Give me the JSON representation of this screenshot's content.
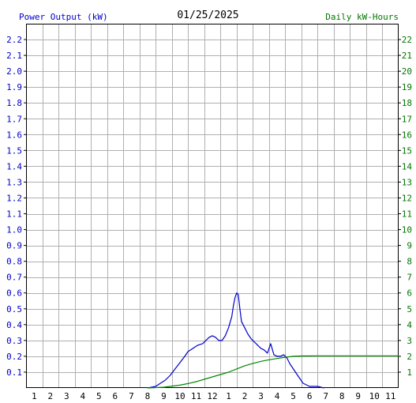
{
  "header": {
    "left_label": "Power Output (kW)",
    "date": "01/25/2025",
    "right_label": "Daily kW-Hours"
  },
  "colors": {
    "power_series": "#0000cc",
    "energy_series": "#008800",
    "left_axis_text": "#0000cc",
    "right_axis_text": "#007700",
    "grid": "#b0b0b0"
  },
  "chart_data": {
    "type": "line",
    "x_categories": [
      "1",
      "2",
      "3",
      "4",
      "5",
      "6",
      "7",
      "8",
      "9",
      "10",
      "11",
      "12",
      "1",
      "2",
      "3",
      "4",
      "5",
      "6",
      "7",
      "8",
      "9",
      "10",
      "11"
    ],
    "xlim": [
      0,
      23
    ],
    "y_left": {
      "label": "Power Output (kW)",
      "ylim": [
        0,
        2.3
      ],
      "ticks": [
        "0.1",
        "0.2",
        "0.3",
        "0.4",
        "0.5",
        "0.6",
        "0.7",
        "0.8",
        "0.9",
        "1.0",
        "1.1",
        "1.2",
        "1.3",
        "1.4",
        "1.5",
        "1.6",
        "1.7",
        "1.8",
        "1.9",
        "2.0",
        "2.1",
        "2.2"
      ]
    },
    "y_right": {
      "label": "Daily kW-Hours",
      "ylim": [
        0,
        23
      ],
      "ticks": [
        "1",
        "2",
        "3",
        "4",
        "5",
        "6",
        "7",
        "8",
        "9",
        "10",
        "11",
        "12",
        "13",
        "14",
        "15",
        "16",
        "17",
        "18",
        "19",
        "20",
        "21",
        "22"
      ]
    },
    "grid": true,
    "series": [
      {
        "axis": "left",
        "x": [
          7.5,
          8.0,
          8.3,
          8.6,
          8.9,
          9.2,
          9.5,
          9.8,
          10.0,
          10.3,
          10.6,
          10.9,
          11.1,
          11.3,
          11.5,
          11.7,
          11.9,
          12.1,
          12.3,
          12.5,
          12.7,
          12.8,
          12.9,
          13.0,
          13.1,
          13.2,
          13.3,
          13.5,
          13.7,
          13.9,
          14.1,
          14.3,
          14.5,
          14.7,
          14.9,
          15.1,
          15.3,
          15.5,
          15.7,
          15.9,
          16.1,
          16.3,
          16.5,
          16.7,
          16.9,
          17.1,
          17.3,
          17.5,
          17.8,
          18.0,
          18.4
        ],
        "y": [
          0.0,
          0.01,
          0.03,
          0.05,
          0.08,
          0.12,
          0.16,
          0.2,
          0.23,
          0.25,
          0.27,
          0.28,
          0.3,
          0.32,
          0.33,
          0.32,
          0.3,
          0.3,
          0.33,
          0.38,
          0.45,
          0.52,
          0.57,
          0.6,
          0.59,
          0.5,
          0.42,
          0.38,
          0.34,
          0.31,
          0.29,
          0.27,
          0.25,
          0.24,
          0.22,
          0.28,
          0.21,
          0.2,
          0.2,
          0.21,
          0.19,
          0.15,
          0.12,
          0.09,
          0.06,
          0.03,
          0.02,
          0.01,
          0.01,
          0.01,
          0.0
        ]
      },
      {
        "axis": "right",
        "x": [
          7.5,
          8.5,
          9.5,
          10.0,
          10.5,
          11.0,
          11.5,
          12.0,
          12.5,
          13.0,
          13.5,
          14.0,
          14.5,
          15.0,
          15.5,
          16.0,
          16.5,
          17.0,
          18.0,
          20.0,
          23.0
        ],
        "y": [
          0.0,
          0.05,
          0.18,
          0.28,
          0.4,
          0.55,
          0.7,
          0.85,
          1.0,
          1.2,
          1.4,
          1.55,
          1.68,
          1.78,
          1.86,
          1.94,
          2.0,
          2.02,
          2.03,
          2.03,
          2.03
        ]
      }
    ]
  }
}
